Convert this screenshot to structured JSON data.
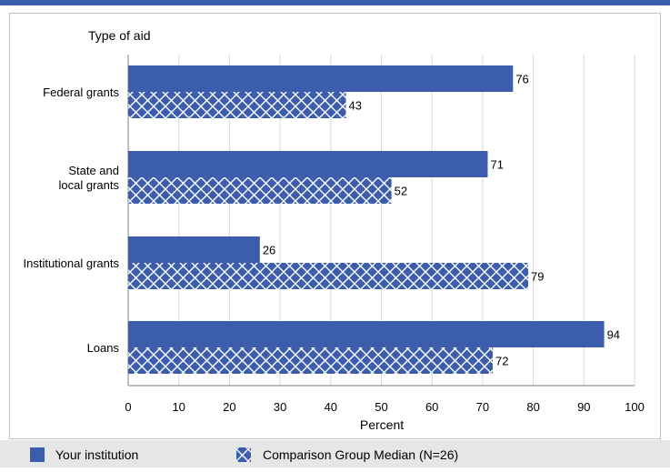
{
  "chart_data": {
    "type": "bar",
    "orientation": "horizontal",
    "ylabel": "Type of aid",
    "xlabel": "Percent",
    "xlim": [
      0,
      100
    ],
    "xticks": [
      "0",
      "10",
      "20",
      "30",
      "40",
      "50",
      "60",
      "70",
      "80",
      "90",
      "100"
    ],
    "grid": true,
    "legend_position": "bottom",
    "categories": [
      [
        "Federal grants"
      ],
      [
        "State and",
        "local grants"
      ],
      [
        "Institutional grants"
      ],
      [
        "Loans"
      ]
    ],
    "series": [
      {
        "name": "Your institution",
        "values": [
          76,
          71,
          26,
          94
        ],
        "color": "#3b5dab",
        "pattern": "solid"
      },
      {
        "name": "Comparison Group Median (N=26)",
        "values": [
          43,
          52,
          79,
          72
        ],
        "color": "#3b5dab",
        "pattern": "crosshatch"
      }
    ]
  }
}
